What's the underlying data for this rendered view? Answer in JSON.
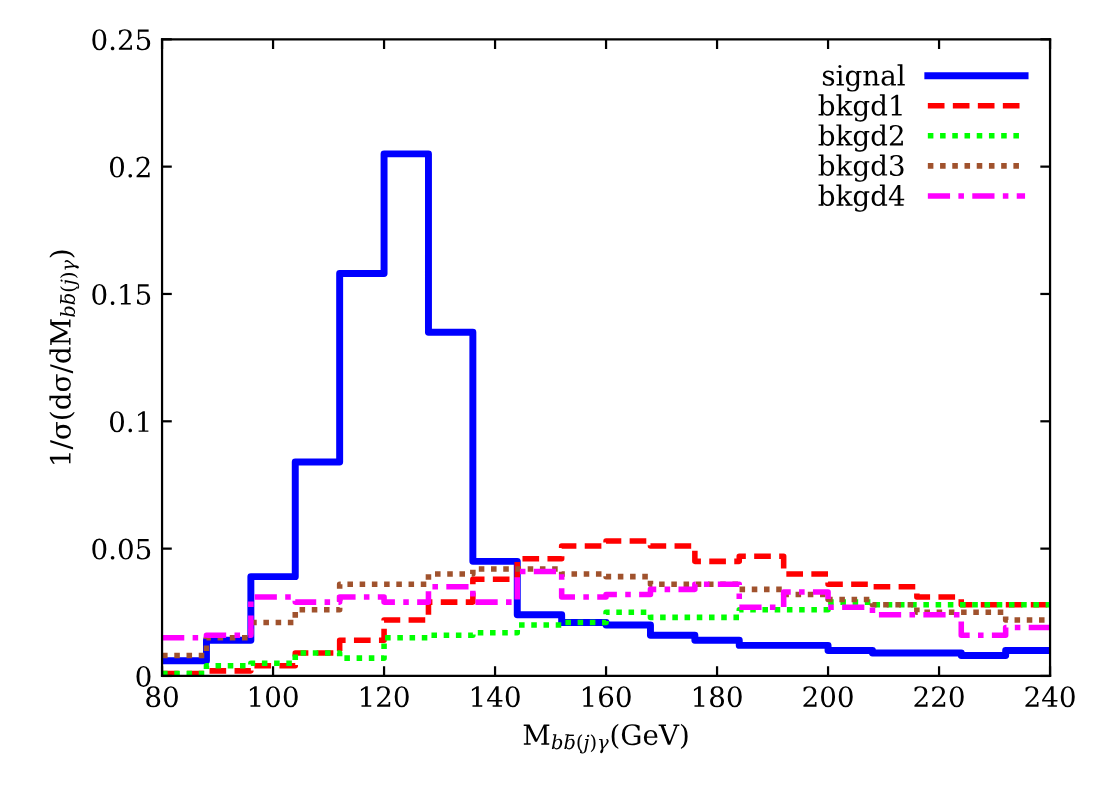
{
  "chart_data": {
    "type": "histogram",
    "xlabel": "M$_{bb̄(j)γ}$(GeV)",
    "ylabel": "1/σ(dσ/dM$_{bb̄(j)γ}$)",
    "bins": [
      80,
      88,
      96,
      104,
      112,
      120,
      128,
      136,
      144,
      152,
      160,
      168,
      176,
      184,
      192,
      200,
      208,
      216,
      224,
      232,
      240
    ],
    "series": [
      {
        "name": "signal",
        "color": "#0000ff",
        "line_style": "solid",
        "values": [
          0.006,
          0.014,
          0.039,
          0.084,
          0.158,
          0.205,
          0.135,
          0.045,
          0.024,
          0.021,
          0.02,
          0.016,
          0.014,
          0.012,
          0.012,
          0.01,
          0.009,
          0.009,
          0.008,
          0.01
        ]
      },
      {
        "name": "bkgd1",
        "color": "#ff0000",
        "line_style": "dashed",
        "values": [
          0.001,
          0.002,
          0.004,
          0.009,
          0.014,
          0.022,
          0.029,
          0.038,
          0.046,
          0.051,
          0.053,
          0.051,
          0.045,
          0.047,
          0.04,
          0.036,
          0.035,
          0.031,
          0.028,
          0.028
        ]
      },
      {
        "name": "bkgd2",
        "color": "#00ff00",
        "line_style": "dotted",
        "values": [
          0.001,
          0.004,
          0.005,
          0.009,
          0.007,
          0.015,
          0.016,
          0.017,
          0.02,
          0.021,
          0.025,
          0.023,
          0.023,
          0.026,
          0.026,
          0.029,
          0.028,
          0.028,
          0.028,
          0.028
        ]
      },
      {
        "name": "bkgd3",
        "color": "#a0522d",
        "line_style": "dotted",
        "values": [
          0.008,
          0.015,
          0.021,
          0.026,
          0.036,
          0.036,
          0.04,
          0.042,
          0.042,
          0.04,
          0.039,
          0.036,
          0.036,
          0.034,
          0.032,
          0.03,
          0.028,
          0.025,
          0.025,
          0.022
        ]
      },
      {
        "name": "bkgd4",
        "color": "#ff00ff",
        "line_style": "dashdot",
        "values": [
          0.015,
          0.016,
          0.031,
          0.029,
          0.031,
          0.029,
          0.035,
          0.029,
          0.041,
          0.031,
          0.032,
          0.034,
          0.036,
          0.027,
          0.033,
          0.027,
          0.024,
          0.024,
          0.016,
          0.019
        ]
      }
    ],
    "xlim": [
      80,
      240
    ],
    "xticks": [
      80,
      100,
      120,
      140,
      160,
      180,
      200,
      220,
      240
    ],
    "ylim": [
      0,
      0.25
    ],
    "yticks": [
      0,
      0.05,
      0.1,
      0.15,
      0.2,
      0.25
    ],
    "legend": "top right",
    "grid": false
  }
}
